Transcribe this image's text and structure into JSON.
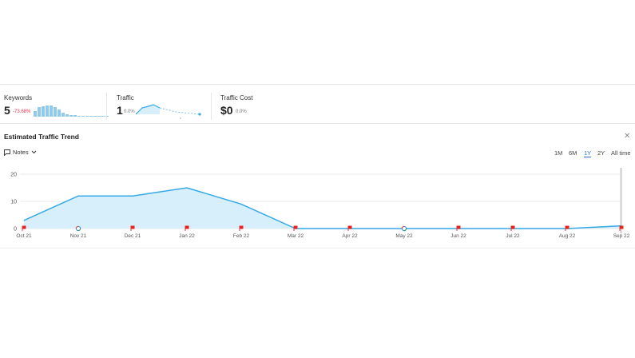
{
  "metrics": {
    "keywords": {
      "label": "Keywords",
      "value": "5",
      "change": "-73.68%",
      "change_color": "#e8384f"
    },
    "traffic": {
      "label": "Traffic",
      "value": "1",
      "change": "0.0%"
    },
    "traffic_cost": {
      "label": "Traffic Cost",
      "value": "$0",
      "change": "0.0%"
    }
  },
  "panel": {
    "title": "Estimated Traffic Trend",
    "close_icon": "close-icon",
    "notes_label": "Notes",
    "notes_icon": "comment-icon",
    "ranges": [
      "1M",
      "6M",
      "1Y",
      "2Y",
      "All time"
    ],
    "active_range": "1Y"
  },
  "colors": {
    "line": "#35a9e7",
    "fill": "#d7effa",
    "flag": "#e8221a",
    "grid": "#e9e9e9"
  },
  "chart_data": {
    "type": "area",
    "categories": [
      "Oct 21",
      "Nov 21",
      "Dec 21",
      "Jan 22",
      "Feb 22",
      "Mar 22",
      "Apr 22",
      "May 22",
      "Jun 22",
      "Jul 22",
      "Aug 22",
      "Sep 22"
    ],
    "values": [
      3,
      12,
      12,
      15,
      9,
      0,
      0,
      0,
      0,
      0,
      0,
      1
    ],
    "yticks": [
      0,
      10,
      20
    ],
    "ylim": [
      0,
      20
    ],
    "grid": true,
    "markers": [
      "flag",
      "google",
      "flag",
      "flag",
      "flag",
      "flag",
      "flag",
      "google",
      "flag",
      "flag",
      "flag",
      "flag"
    ]
  }
}
